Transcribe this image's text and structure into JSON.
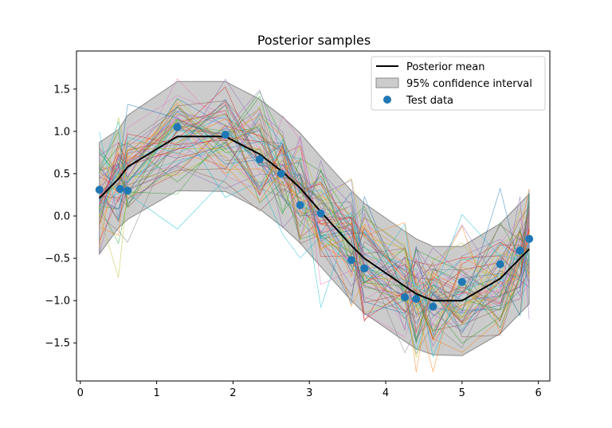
{
  "chart_data": {
    "type": "line",
    "title": "Posterior samples",
    "xlabel": "",
    "ylabel": "",
    "xlim": [
      -0.05,
      6.15
    ],
    "ylim": [
      -1.95,
      1.95
    ],
    "xticks": [
      0,
      1,
      2,
      3,
      4,
      5,
      6
    ],
    "yticks": [
      -1.5,
      -1.0,
      -0.5,
      0.0,
      0.5,
      1.0,
      1.5
    ],
    "xtick_labels": [
      "0",
      "1",
      "2",
      "3",
      "4",
      "5",
      "6"
    ],
    "ytick_labels": [
      "−1.5",
      "−1.0",
      "−0.5",
      "0.0",
      "0.5",
      "1.0",
      "1.5"
    ],
    "grid": false,
    "legend_placement": "top-right",
    "legend": {
      "mean": "Posterior mean",
      "ci": "95% confidence interval",
      "test": "Test data"
    },
    "x": [
      0.25,
      0.5,
      0.62,
      1.27,
      1.9,
      2.35,
      2.65,
      2.88,
      3.15,
      3.55,
      3.72,
      4.25,
      4.4,
      4.62,
      5.0,
      5.5,
      5.76,
      5.88
    ],
    "posterior_mean": [
      0.21,
      0.44,
      0.58,
      0.94,
      0.94,
      0.73,
      0.52,
      0.33,
      0.05,
      -0.35,
      -0.5,
      -0.83,
      -0.92,
      -1.0,
      -1.0,
      -0.74,
      -0.5,
      -0.39
    ],
    "ci_lower": [
      -0.45,
      -0.14,
      -0.04,
      0.3,
      0.29,
      0.08,
      -0.13,
      -0.32,
      -0.6,
      -1.0,
      -1.15,
      -1.48,
      -1.57,
      -1.64,
      -1.65,
      -1.39,
      -1.15,
      -1.04
    ],
    "ci_upper": [
      0.87,
      1.02,
      1.19,
      1.59,
      1.59,
      1.38,
      1.17,
      0.98,
      0.7,
      0.3,
      0.15,
      -0.18,
      -0.27,
      -0.36,
      -0.36,
      -0.09,
      0.15,
      0.26
    ],
    "test_data": {
      "x": [
        0.25,
        0.52,
        0.62,
        1.27,
        1.9,
        2.35,
        2.63,
        2.88,
        3.15,
        3.55,
        3.72,
        4.25,
        4.4,
        4.62,
        5.0,
        5.5,
        5.76,
        5.88
      ],
      "y": [
        0.31,
        0.32,
        0.3,
        1.05,
        0.96,
        0.67,
        0.5,
        0.13,
        0.03,
        -0.52,
        -0.62,
        -0.96,
        -0.98,
        -1.07,
        -0.78,
        -0.57,
        -0.41,
        -0.27
      ]
    },
    "n_samples": 60,
    "colors": {
      "mean": "#000000",
      "ci_fill": "#bfbfbf",
      "ci_edge": "#8a8a8a",
      "test": "#1f77b4",
      "palette": [
        "#1f77b4",
        "#ff7f0e",
        "#2ca02c",
        "#d62728",
        "#9467bd",
        "#8c564b",
        "#e377c2",
        "#7f7f7f",
        "#bcbd22",
        "#17becf"
      ]
    }
  }
}
